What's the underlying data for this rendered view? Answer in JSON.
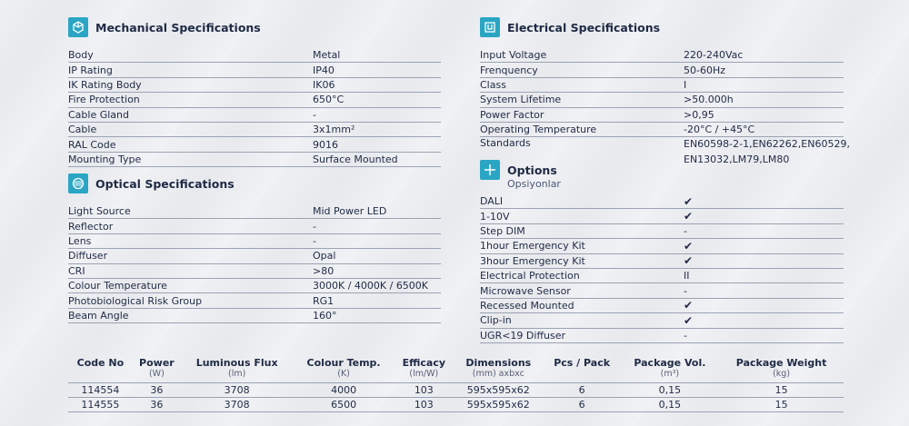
{
  "mechanical": {
    "title": "Mechanical Specifications",
    "icon": "cube-axes-icon",
    "rows": [
      {
        "label": "Body",
        "value": "Metal"
      },
      {
        "label": "IP Rating",
        "value": "IP40"
      },
      {
        "label": "IK Rating Body",
        "value": "IK06"
      },
      {
        "label": "Fire Protection",
        "value": "650°C"
      },
      {
        "label": "Cable Gland",
        "value": "-"
      },
      {
        "label": "Cable",
        "value": "3x1mm²"
      },
      {
        "label": "RAL Code",
        "value": "9016"
      },
      {
        "label": "Mounting Type",
        "value": "Surface Mounted"
      }
    ]
  },
  "optical": {
    "title": "Optical Specifications",
    "icon": "lens-icon",
    "rows": [
      {
        "label": "Light Source",
        "value": "Mid Power LED"
      },
      {
        "label": "Reflector",
        "value": "-"
      },
      {
        "label": "Lens",
        "value": "-"
      },
      {
        "label": "Diffuser",
        "value": "Opal"
      },
      {
        "label": "CRI",
        "value": ">80"
      },
      {
        "label": "Colour Temperature",
        "value": "3000K / 4000K / 6500K"
      },
      {
        "label": "Photobiological Risk Group",
        "value": "RG1"
      },
      {
        "label": "Beam Angle",
        "value": "160°"
      }
    ]
  },
  "electrical": {
    "title": "Electrical Specifications",
    "icon": "plug-icon",
    "rows": [
      {
        "label": "Input Voltage",
        "value": "220-240Vac"
      },
      {
        "label": "Frenquency",
        "value": "50-60Hz"
      },
      {
        "label": "Class",
        "value": "I"
      },
      {
        "label": "System Lifetime",
        "value": ">50.000h"
      },
      {
        "label": "Power Factor",
        "value": ">0,95"
      },
      {
        "label": "Operating Temperature",
        "value": "-20°C / +45°C"
      }
    ],
    "standards_label": "Standards",
    "standards_line1": "EN60598-2-1,EN62262,EN60529,",
    "standards_line2": "EN13032,LM79,LM80"
  },
  "options": {
    "title": "Options",
    "subtitle": "Opsiyonlar",
    "icon": "plus-icon",
    "rows": [
      {
        "label": "DALI",
        "value": "✔"
      },
      {
        "label": "1-10V",
        "value": "✔"
      },
      {
        "label": "Step DIM",
        "value": "-"
      },
      {
        "label": "1hour Emergency Kit",
        "value": "✔"
      },
      {
        "label": "3hour Emergency Kit",
        "value": "✔"
      },
      {
        "label": "Electrical Protection",
        "value": "II"
      },
      {
        "label": "Microwave Sensor",
        "value": "-"
      },
      {
        "label": "Recessed Mounted",
        "value": "✔"
      },
      {
        "label": "Clip-in",
        "value": "✔"
      },
      {
        "label": "UGR<19 Diffuser",
        "value": "-"
      }
    ]
  },
  "codes": {
    "headers": [
      {
        "name": "Code No",
        "unit": ""
      },
      {
        "name": "Power",
        "unit": "(W)"
      },
      {
        "name": "Luminous Flux",
        "unit": "(lm)"
      },
      {
        "name": "Colour Temp.",
        "unit": "(K)"
      },
      {
        "name": "Efficacy",
        "unit": "(lm/W)"
      },
      {
        "name": "Dimensions",
        "unit": "(mm) axbxc"
      },
      {
        "name": "Pcs / Pack",
        "unit": ""
      },
      {
        "name": "Package Vol.",
        "unit": "(m³)"
      },
      {
        "name": "Package Weight",
        "unit": "(kg)"
      }
    ],
    "rows": [
      [
        "114554",
        "36",
        "3708",
        "4000",
        "103",
        "595x595x62",
        "6",
        "0,15",
        "15"
      ],
      [
        "114555",
        "36",
        "3708",
        "6500",
        "103",
        "595x595x62",
        "6",
        "0,15",
        "15"
      ]
    ]
  },
  "colors": {
    "accent": "#2aa6c4",
    "text": "#1f2a44",
    "rule": "#9aa3b3"
  }
}
